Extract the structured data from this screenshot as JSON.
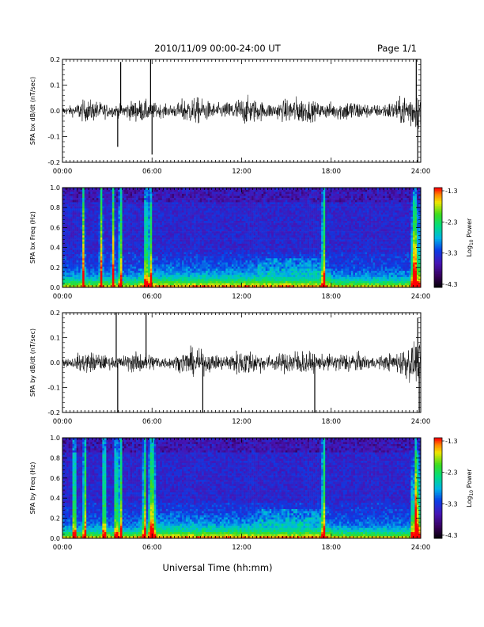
{
  "header": {
    "title": "2010/11/09  00:00-24:00 UT",
    "page": "Page 1/1"
  },
  "xaxis": {
    "label": "Universal Time (hh:mm)",
    "ticks": [
      "00:00",
      "06:00",
      "12:00",
      "18:00",
      "24:00"
    ]
  },
  "colorbar": {
    "label_main": "Log",
    "label_sub": "10",
    "label_end": " Power",
    "ticks": [
      "-1.3",
      "-2.3",
      "-3.3",
      "-4.3"
    ]
  },
  "chart_data": [
    {
      "type": "line",
      "ylabel": "SPA bx dB/dt (nT/sec)",
      "x_range_hours": [
        0,
        24
      ],
      "ylim": [
        -0.2,
        0.2
      ],
      "yticks": [
        "0.2",
        "0.1",
        "0.0",
        "-0.1",
        "-0.2"
      ],
      "typical_amplitude": 0.04,
      "bursts": [
        {
          "t": 3.9,
          "peak": 0.19
        },
        {
          "t": 5.9,
          "peak": 0.2
        },
        {
          "t": 6.0,
          "peak": -0.17
        },
        {
          "t": 3.7,
          "peak": -0.14
        },
        {
          "t": 23.7,
          "peak": 0.2
        },
        {
          "t": 23.8,
          "peak": -0.2
        }
      ]
    },
    {
      "type": "heatmap",
      "ylabel": "SPA bx Freq (Hz)",
      "x_range_hours": [
        0,
        24
      ],
      "ylim": [
        0.0,
        1.0
      ],
      "yticks": [
        "1.0",
        "0.8",
        "0.6",
        "0.4",
        "0.2",
        "0.0"
      ],
      "value_range": [
        -4.3,
        -1.3
      ]
    },
    {
      "type": "line",
      "ylabel": "SPA by dB/dt (nT/sec)",
      "x_range_hours": [
        0,
        24
      ],
      "ylim": [
        -0.2,
        0.2
      ],
      "yticks": [
        "0.2",
        "0.1",
        "0.0",
        "-0.1",
        "-0.2"
      ],
      "typical_amplitude": 0.04,
      "bursts": [
        {
          "t": 3.6,
          "peak": 0.2
        },
        {
          "t": 3.7,
          "peak": -0.2
        },
        {
          "t": 5.6,
          "peak": 0.2
        },
        {
          "t": 9.4,
          "peak": -0.2
        },
        {
          "t": 16.9,
          "peak": -0.2
        },
        {
          "t": 23.8,
          "peak": 0.18
        },
        {
          "t": 23.9,
          "peak": -0.2
        }
      ]
    },
    {
      "type": "heatmap",
      "ylabel": "SPA by Freq (Hz)",
      "x_range_hours": [
        0,
        24
      ],
      "ylim": [
        0.0,
        1.0
      ],
      "yticks": [
        "1.0",
        "0.8",
        "0.6",
        "0.4",
        "0.2",
        "0.0"
      ],
      "value_range": [
        -4.3,
        -1.3
      ]
    }
  ]
}
